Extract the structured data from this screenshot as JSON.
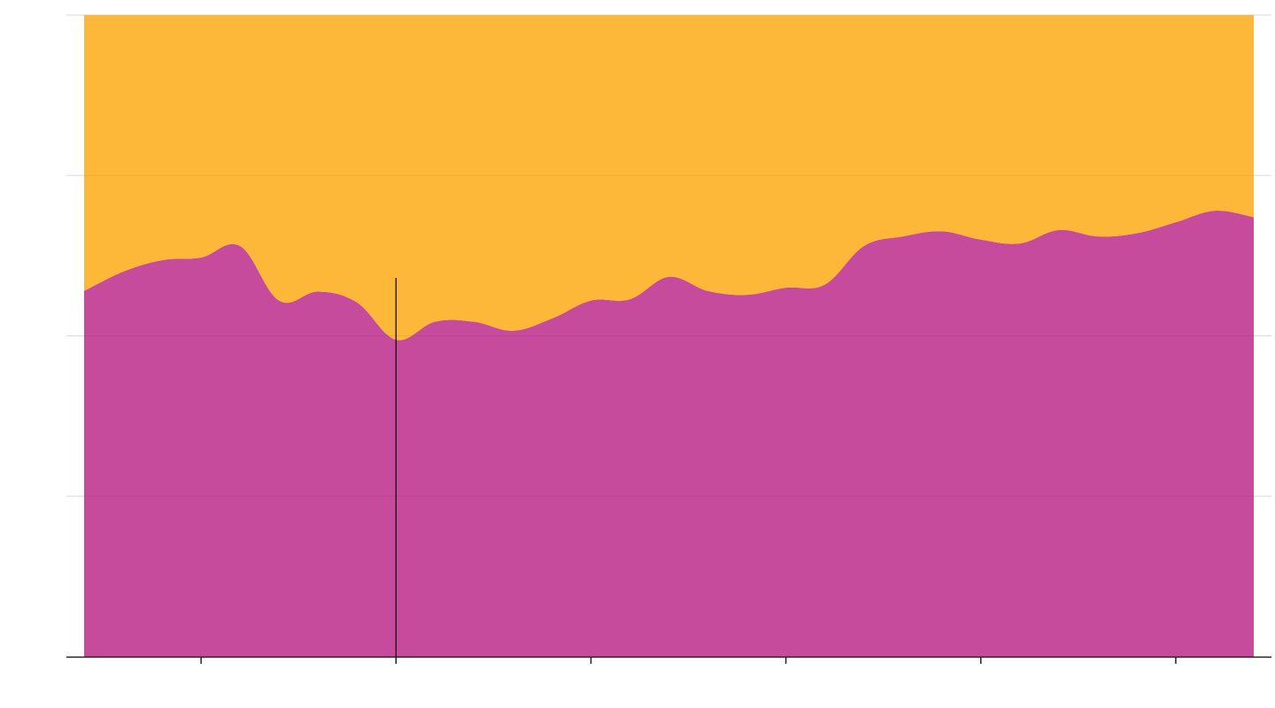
{
  "chart_data": {
    "type": "area",
    "stacked": true,
    "normalized": true,
    "title": "",
    "xlabel": "",
    "ylabel": "",
    "xlim": [
      0,
      30
    ],
    "ylim": [
      0,
      1
    ],
    "grid": true,
    "legend": "none",
    "x": [
      0,
      1,
      2,
      3,
      4,
      5,
      6,
      7,
      8,
      9,
      10,
      11,
      12,
      13,
      14,
      15,
      16,
      17,
      18,
      19,
      20,
      21,
      22,
      23,
      24,
      25,
      26,
      27,
      28,
      29,
      30
    ],
    "x_ticks": [
      3,
      8,
      13,
      18,
      23,
      28
    ],
    "y_ticks": [
      0,
      0.25,
      0.5,
      0.75,
      1
    ],
    "series": [
      {
        "color": "#c6479a",
        "values": [
          0.57,
          0.6,
          0.618,
          0.622,
          0.64,
          0.555,
          0.569,
          0.552,
          0.494,
          0.522,
          0.522,
          0.508,
          0.527,
          0.555,
          0.557,
          0.592,
          0.57,
          0.564,
          0.575,
          0.58,
          0.64,
          0.655,
          0.663,
          0.65,
          0.644,
          0.665,
          0.655,
          0.66,
          0.677,
          0.695,
          0.685
        ]
      },
      {
        "color": "#fdb735",
        "values": [
          0.43,
          0.4,
          0.382,
          0.378,
          0.36,
          0.445,
          0.431,
          0.448,
          0.506,
          0.478,
          0.478,
          0.492,
          0.473,
          0.445,
          0.443,
          0.408,
          0.43,
          0.436,
          0.425,
          0.42,
          0.36,
          0.345,
          0.337,
          0.35,
          0.356,
          0.335,
          0.345,
          0.34,
          0.323,
          0.305,
          0.315
        ]
      }
    ],
    "cursor_x": 8,
    "colors": {
      "grid": "#d9d9d9",
      "axis": "#222222",
      "cursor": "#111111"
    }
  }
}
